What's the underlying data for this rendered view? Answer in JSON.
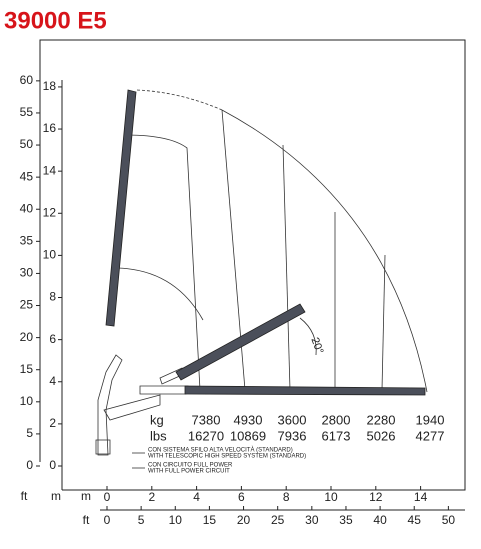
{
  "title": "39000 E5",
  "axes": {
    "left_ft": {
      "unit": "ft",
      "ticks": [
        0,
        5,
        10,
        15,
        20,
        25,
        30,
        35,
        40,
        45,
        50,
        55,
        60
      ]
    },
    "left_m": {
      "unit": "m",
      "ticks": [
        0,
        2,
        4,
        6,
        8,
        10,
        12,
        14,
        16,
        18
      ]
    },
    "bottom_m": {
      "unit": "m",
      "ticks": [
        0,
        2,
        4,
        6,
        8,
        10,
        12,
        14
      ]
    },
    "bottom_ft": {
      "unit": "ft",
      "ticks": [
        0,
        5,
        10,
        15,
        20,
        25,
        30,
        35,
        40,
        45,
        50
      ]
    }
  },
  "loads": {
    "kg_label": "kg",
    "lbs_label": "lbs",
    "kg": [
      7380,
      4930,
      3600,
      2800,
      2280,
      1940
    ],
    "lbs": [
      16270,
      10869,
      7936,
      6173,
      5026,
      4277
    ]
  },
  "legend": [
    "CON SISTEMA SFILO ALTA VELOCITÀ (STANDARD)",
    "WITH TELESCOPIC HIGH SPEED SYSTEM (STANDARD)",
    "CON CIRCUITO FULL POWER",
    "WITH FULL POWER CIRCUIT"
  ],
  "angle": "20°"
}
